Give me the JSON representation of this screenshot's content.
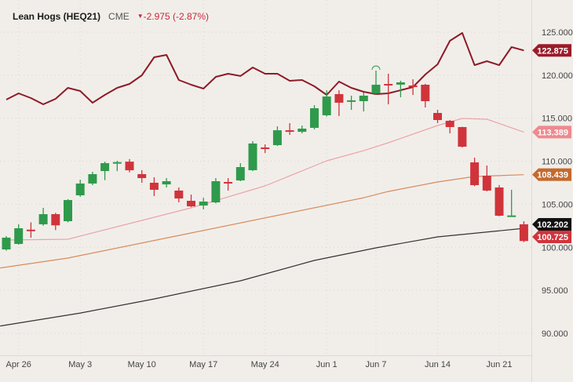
{
  "header": {
    "title": "Lean Hogs (HEQ21)",
    "exchange": "CME",
    "change": "-2.975 (-2.87%)",
    "change_direction_icon": "triangle-down-icon"
  },
  "chart_data": {
    "type": "candlestick",
    "title": "Lean Hogs (HEQ21)",
    "ylim": [
      88.5,
      126.5
    ],
    "y_ticks": [
      "125.000",
      "120.000",
      "115.000",
      "110.000",
      "105.000",
      "100.000",
      "95.000",
      "90.000"
    ],
    "y_tick_values": [
      125,
      120,
      115,
      110,
      105,
      100,
      95,
      90
    ],
    "x_ticks": [
      {
        "label": "Apr 26",
        "index": 1
      },
      {
        "label": "May 3",
        "index": 6
      },
      {
        "label": "May 10",
        "index": 11
      },
      {
        "label": "May 17",
        "index": 16
      },
      {
        "label": "May 24",
        "index": 21
      },
      {
        "label": "Jun 1",
        "index": 26
      },
      {
        "label": "Jun 7",
        "index": 30
      },
      {
        "label": "Jun 14",
        "index": 35
      },
      {
        "label": "Jun 21",
        "index": 40
      }
    ],
    "grid": true,
    "colors": {
      "up": "#2f9a4b",
      "down": "#d0343b"
    },
    "candles": [
      [
        99.75,
        101.3,
        99.6,
        101.12
      ],
      [
        100.39,
        102.67,
        100.3,
        102.21
      ],
      [
        102.05,
        102.9,
        101.1,
        101.95
      ],
      [
        102.67,
        104.58,
        102.5,
        103.85
      ],
      [
        103.85,
        104.0,
        102.0,
        102.55
      ],
      [
        103.03,
        105.6,
        102.9,
        105.49
      ],
      [
        106.04,
        107.86,
        105.86,
        107.41
      ],
      [
        107.41,
        108.77,
        107.22,
        108.5
      ],
      [
        108.86,
        109.95,
        107.8,
        109.78
      ],
      [
        109.8,
        110.05,
        108.85,
        109.9
      ],
      [
        109.95,
        110.25,
        108.7,
        108.95
      ],
      [
        108.5,
        108.96,
        107.5,
        108.04
      ],
      [
        107.5,
        108.14,
        105.95,
        106.68
      ],
      [
        107.31,
        108.04,
        106.95,
        107.68
      ],
      [
        106.59,
        106.95,
        105.22,
        105.67
      ],
      [
        105.4,
        106.13,
        104.67,
        104.76
      ],
      [
        104.85,
        105.76,
        104.4,
        105.31
      ],
      [
        105.22,
        108.04,
        105.1,
        107.68
      ],
      [
        107.59,
        108.04,
        106.59,
        107.41
      ],
      [
        107.77,
        109.78,
        107.68,
        109.32
      ],
      [
        108.96,
        112.33,
        108.86,
        112.06
      ],
      [
        111.6,
        111.96,
        110.96,
        111.42
      ],
      [
        111.87,
        114.06,
        111.78,
        113.6
      ],
      [
        113.6,
        114.43,
        113.06,
        113.42
      ],
      [
        113.42,
        114.15,
        113.24,
        113.79
      ],
      [
        113.88,
        116.52,
        113.7,
        116.16
      ],
      [
        115.34,
        118.25,
        115.2,
        117.52
      ],
      [
        117.8,
        118.25,
        115.25,
        116.8
      ],
      [
        116.98,
        117.62,
        115.97,
        117.08
      ],
      [
        116.98,
        117.98,
        115.79,
        117.62
      ],
      [
        117.89,
        120.53,
        117.75,
        118.89
      ],
      [
        118.98,
        120.17,
        116.61,
        118.8
      ],
      [
        118.9,
        119.35,
        117.43,
        119.17
      ],
      [
        118.8,
        119.53,
        117.7,
        118.7
      ],
      [
        118.89,
        119.0,
        116.25,
        116.98
      ],
      [
        115.61,
        115.98,
        114.43,
        114.79
      ],
      [
        114.7,
        114.8,
        113.24,
        113.97
      ],
      [
        113.97,
        114.0,
        111.6,
        111.69
      ],
      [
        109.87,
        110.41,
        107.1,
        107.22
      ],
      [
        108.32,
        109.5,
        106.5,
        106.59
      ],
      [
        106.95,
        107.22,
        103.6,
        103.67
      ],
      [
        103.6,
        106.68,
        103.55,
        103.7
      ],
      [
        102.67,
        103.03,
        100.6,
        100.725
      ]
    ],
    "series": [
      {
        "name": "upper",
        "color": "#8e1b28",
        "last": "122.875",
        "tag_color": "#9b1b2a",
        "points": [
          [
            0,
            117.16
          ],
          [
            1,
            117.89
          ],
          [
            2,
            117.34
          ],
          [
            3,
            116.61
          ],
          [
            4,
            117.25
          ],
          [
            5,
            118.53
          ],
          [
            6,
            118.16
          ],
          [
            7,
            116.8
          ],
          [
            8,
            117.71
          ],
          [
            9,
            118.53
          ],
          [
            10,
            118.98
          ],
          [
            11,
            119.99
          ],
          [
            12,
            122.08
          ],
          [
            13,
            122.36
          ],
          [
            14,
            119.44
          ],
          [
            15,
            118.89
          ],
          [
            16,
            118.44
          ],
          [
            17,
            119.8
          ],
          [
            18,
            120.17
          ],
          [
            19,
            119.9
          ],
          [
            20,
            120.9
          ],
          [
            21,
            120.17
          ],
          [
            22,
            120.17
          ],
          [
            23,
            119.35
          ],
          [
            24,
            119.44
          ],
          [
            25,
            118.71
          ],
          [
            26,
            117.71
          ],
          [
            27,
            119.26
          ],
          [
            28,
            118.53
          ],
          [
            29,
            118.07
          ],
          [
            30,
            117.8
          ],
          [
            31,
            117.89
          ],
          [
            32,
            118.25
          ],
          [
            33,
            118.62
          ],
          [
            34,
            120.08
          ],
          [
            35,
            121.26
          ],
          [
            36,
            124.0
          ],
          [
            37,
            124.91
          ],
          [
            38,
            121.17
          ],
          [
            39,
            121.63
          ],
          [
            40,
            121.17
          ],
          [
            41,
            123.27
          ],
          [
            42,
            122.875
          ]
        ]
      },
      {
        "name": "pink",
        "color": "#eca4a7",
        "last": "113.389",
        "tag_color": "#ee8a90",
        "points": [
          [
            0,
            100.84
          ],
          [
            5,
            100.93
          ],
          [
            11,
            103.12
          ],
          [
            15,
            104.58
          ],
          [
            21,
            107.13
          ],
          [
            26,
            110.05
          ],
          [
            29,
            111.23
          ],
          [
            31,
            112.15
          ],
          [
            35,
            114.15
          ],
          [
            37,
            114.97
          ],
          [
            39,
            114.88
          ],
          [
            42,
            113.389
          ]
        ]
      },
      {
        "name": "orange",
        "color": "#d98b5c",
        "last": "108.439",
        "tag_color": "#c46a2e",
        "points": [
          [
            -0.5,
            97.6
          ],
          [
            5,
            98.75
          ],
          [
            15,
            101.66
          ],
          [
            29,
            105.76
          ],
          [
            31,
            106.49
          ],
          [
            35,
            107.59
          ],
          [
            38,
            108.23
          ],
          [
            42,
            108.439
          ]
        ]
      },
      {
        "name": "black",
        "color": "#333333",
        "last": "102.202",
        "tag_color": "#111111",
        "points": [
          [
            -0.5,
            90.85
          ],
          [
            6,
            92.36
          ],
          [
            12,
            94.0
          ],
          [
            19,
            96.1
          ],
          [
            25,
            98.47
          ],
          [
            30,
            99.93
          ],
          [
            35,
            101.21
          ],
          [
            42,
            102.202
          ]
        ]
      }
    ],
    "last_price": "100.725",
    "last_price_color": "#d0343b"
  }
}
